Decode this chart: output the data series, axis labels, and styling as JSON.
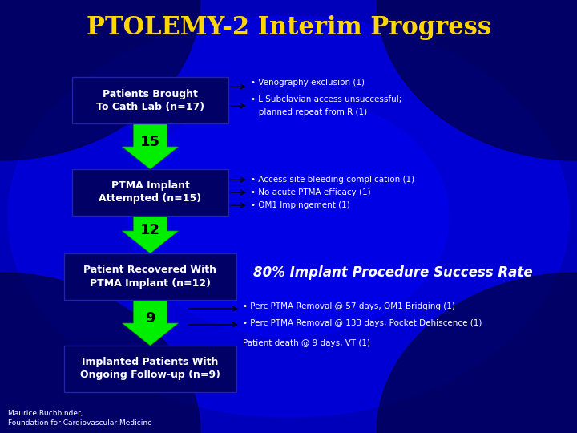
{
  "title": "PTOLEMY-2 Interim Progress",
  "title_color": "#FFD700",
  "bg_color": "#0000BB",
  "box_facecolor": "#00007A",
  "arrow_color": "#00FF00",
  "text_color": "#FFFFFF",
  "box1_label": "Patients Brought\nTo Cath Lab (n=17)",
  "box2_label": "PTMA Implant\nAttempted (n=15)",
  "box3_label": "Patient Recovered With\nPTMA Implant (n=12)",
  "box4_label": "Implanted Patients With\nOngoing Follow-up (n=9)",
  "notes1": [
    "• Venography exclusion (1)",
    "• L Subclavian access unsuccessful;",
    "   planned repeat from R (1)"
  ],
  "notes2": [
    "• Access site bleeding complication (1)",
    "• No acute PTMA efficacy (1)",
    "• OM1 Impingement (1)"
  ],
  "notes3_bullet1": "• Perc PTMA Removal @ 57 days, OM1 Bridging (1)",
  "notes3_bullet2": "• Perc PTMA Removal @ 133 days, Pocket Dehiscence (1)",
  "notes3_bullet3": "Patient death @ 9 days, VT (1)",
  "success_text": "80% Implant Procedure Success Rate",
  "footer_line1": "Maurice Buchbinder,",
  "footer_line2": "Foundation for Cardiovascular Medicine"
}
